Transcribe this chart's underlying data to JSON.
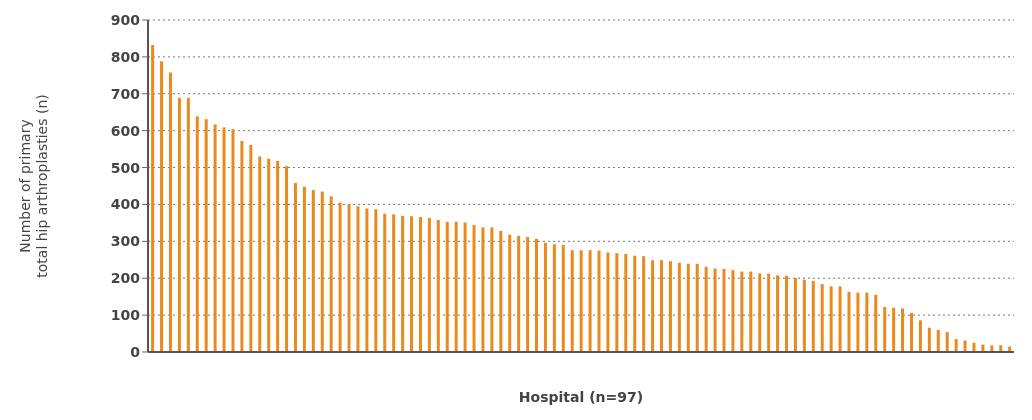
{
  "chart_data": {
    "type": "bar",
    "xlabel": "Hospital (n=97)",
    "ylabel": "Number of primary\ntotal hip arthroplasties (n)",
    "categories": [
      null,
      null,
      null,
      null,
      null,
      null,
      null,
      null,
      null,
      null,
      null,
      null,
      null,
      null,
      null,
      null,
      null,
      null,
      null,
      null,
      null,
      null,
      null,
      null,
      null,
      null,
      null,
      null,
      null,
      null,
      null,
      null,
      null,
      null,
      null,
      null,
      null,
      null,
      null,
      null,
      null,
      null,
      null,
      null,
      null,
      null,
      null,
      null,
      null,
      null,
      null,
      null,
      null,
      null,
      null,
      null,
      null,
      null,
      null,
      null,
      null,
      null,
      null,
      null,
      null,
      null,
      null,
      null,
      null,
      null,
      null,
      null,
      null,
      null,
      null,
      null,
      null,
      null,
      null,
      null,
      null,
      null,
      null,
      null,
      null,
      null,
      null,
      null,
      null,
      null,
      null,
      null,
      null,
      null,
      null,
      null,
      null
    ],
    "values": [
      832,
      788,
      758,
      689,
      689,
      639,
      631,
      617,
      609,
      604,
      572,
      561,
      530,
      524,
      518,
      504,
      458,
      448,
      439,
      435,
      422,
      405,
      400,
      395,
      389,
      387,
      375,
      373,
      369,
      368,
      366,
      363,
      358,
      353,
      353,
      351,
      344,
      338,
      338,
      328,
      318,
      315,
      312,
      307,
      296,
      292,
      290,
      276,
      276,
      276,
      275,
      270,
      268,
      266,
      261,
      260,
      249,
      249,
      246,
      242,
      239,
      239,
      231,
      226,
      225,
      222,
      218,
      218,
      213,
      212,
      208,
      207,
      201,
      196,
      193,
      184,
      178,
      178,
      163,
      161,
      161,
      155,
      122,
      120,
      118,
      106,
      86,
      66,
      60,
      54,
      35,
      31,
      25,
      20,
      18,
      18,
      15
    ],
    "color": "#ea8a1c",
    "ylim": [
      0,
      900
    ],
    "yticks": [
      0,
      100,
      200,
      300,
      400,
      500,
      600,
      700,
      800,
      900
    ],
    "grid": "y"
  }
}
